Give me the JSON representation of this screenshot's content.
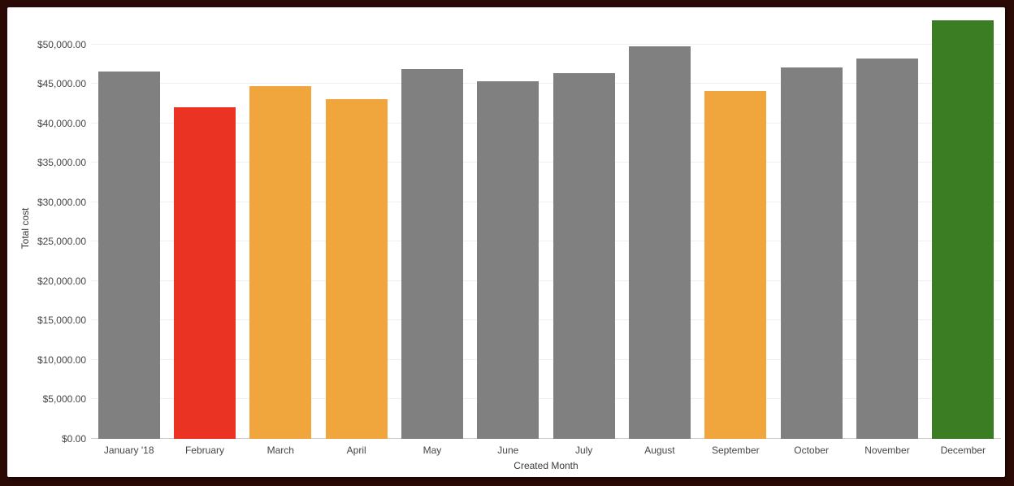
{
  "frame": {
    "background_color": "#2b0a05",
    "card_color": "#ffffff"
  },
  "chart_data": {
    "type": "bar",
    "title": "",
    "xlabel": "Created Month",
    "ylabel": "Total cost",
    "categories": [
      "January '18",
      "February",
      "March",
      "April",
      "May",
      "June",
      "July",
      "August",
      "September",
      "October",
      "November",
      "December"
    ],
    "values": [
      46600,
      42000,
      44700,
      43100,
      46900,
      45300,
      46400,
      49800,
      44100,
      47100,
      48200,
      53000
    ],
    "bar_colors": [
      "#808080",
      "#ea3323",
      "#f0a63c",
      "#f0a63c",
      "#808080",
      "#808080",
      "#808080",
      "#808080",
      "#f0a63c",
      "#808080",
      "#808080",
      "#3a7d22"
    ],
    "color_legend": {
      "default": "#808080",
      "alert": "#ea3323",
      "warning": "#f0a63c",
      "good": "#3a7d22"
    },
    "y_axis": {
      "min": 0,
      "max": 50000,
      "tick_step": 5000,
      "tick_values": [
        0,
        5000,
        10000,
        15000,
        20000,
        25000,
        30000,
        35000,
        40000,
        45000,
        50000
      ],
      "tick_labels": [
        "$0.00",
        "$5,000.00",
        "$10,000.00",
        "$15,000.00",
        "$20,000.00",
        "$25,000.00",
        "$30,000.00",
        "$35,000.00",
        "$40,000.00",
        "$45,000.00",
        "$50,000.00"
      ],
      "grid": true,
      "grid_color": "#efefef",
      "baseline_color": "#cccccc"
    },
    "legend_position": "none",
    "text_color": "#444444"
  }
}
